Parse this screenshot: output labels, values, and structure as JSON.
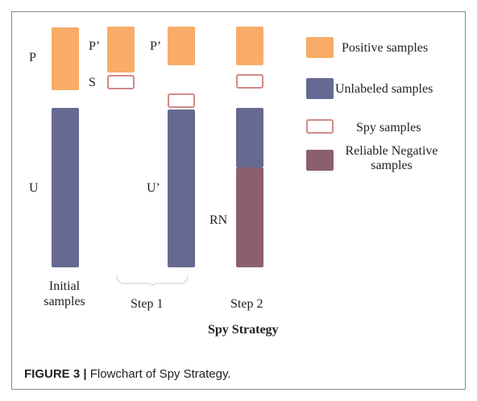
{
  "diagram": {
    "columns": {
      "initial": {
        "p_label": "P",
        "u_label": "U",
        "caption_line1": "Initial",
        "caption_line2": "samples"
      },
      "step1": {
        "p_prime_label": "P’",
        "s_label": "S",
        "p_prime_label_2": "P’",
        "u_prime_label": "U’",
        "caption": "Step 1"
      },
      "step2": {
        "rn_label": "RN",
        "caption": "Step 2"
      }
    },
    "title": "Spy Strategy",
    "legend": [
      {
        "key": "positive",
        "label": "Positive samples"
      },
      {
        "key": "unlabeled",
        "label": "Unlabeled samples"
      },
      {
        "key": "spy",
        "label": "Spy samples"
      },
      {
        "key": "reliable-negative",
        "label_line1": "Reliable Negative",
        "label_line2": "samples"
      }
    ],
    "colors": {
      "positive": "#f8ac67",
      "unlabeled": "#666a92",
      "spy_border": "#d18a86",
      "reliable_negative": "#8c5f6c"
    }
  },
  "figure_caption": {
    "prefix": "FIGURE 3 |",
    "text": " Flowchart of Spy Strategy."
  }
}
